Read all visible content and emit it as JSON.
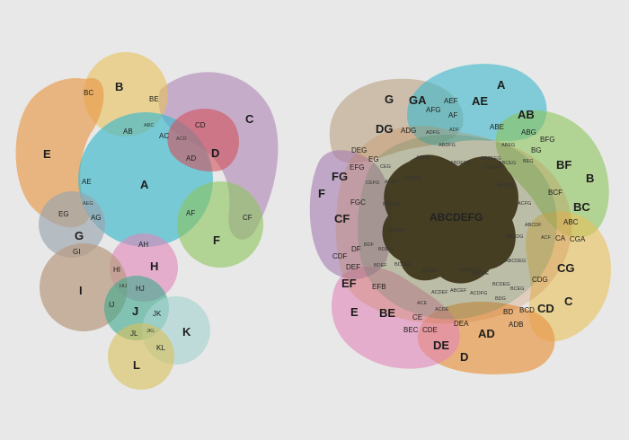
{
  "colors": {
    "A": "#3bb8cc",
    "B": "#e8c25a",
    "C": "#a77bb0",
    "D": "#d1525c",
    "E": "#e89a4a",
    "F": "#8cc45b",
    "G": "#9aa5ae",
    "H": "#e186b8",
    "I": "#b89a80",
    "J": "#3ea88e",
    "K": "#a8d4d2",
    "L": "#d9bf5a",
    "center": "#3b3318"
  },
  "left_diagram": {
    "sets": [
      "A",
      "B",
      "C",
      "D",
      "E",
      "F",
      "G",
      "H",
      "I",
      "J",
      "K",
      "L"
    ],
    "labels": [
      "A",
      "B",
      "C",
      "D",
      "E",
      "F",
      "G",
      "H",
      "I",
      "J",
      "K",
      "L",
      "AB",
      "AC",
      "ACD",
      "AD",
      "AE",
      "AEG",
      "AF",
      "AG",
      "AH",
      "BC",
      "BE",
      "CD",
      "CF",
      "EG",
      "GI",
      "HI",
      "HIJ",
      "HJ",
      "IJ",
      "JK",
      "JL",
      "JKL",
      "KL",
      "ABC"
    ]
  },
  "right_diagram": {
    "sets": [
      "A",
      "B",
      "C",
      "D",
      "E",
      "F",
      "G"
    ],
    "center_label": "ABCDEFG",
    "outer_labels": [
      "A",
      "B",
      "C",
      "D",
      "E",
      "F",
      "G",
      "AB",
      "AE",
      "BF",
      "BC",
      "CG",
      "CD",
      "DE",
      "AD",
      "BE",
      "EF",
      "CF",
      "FG",
      "DG",
      "GA"
    ],
    "mid_labels": [
      "AEF",
      "AF",
      "AFG",
      "ADG",
      "ABE",
      "ABG",
      "BG",
      "BFG",
      "BCF",
      "ABC",
      "CA",
      "CGA",
      "CDG",
      "BCD",
      "BD",
      "ADB",
      "DEA",
      "CDE",
      "CE",
      "BEC",
      "EFB",
      "DEF",
      "CDF",
      "DF",
      "FGC",
      "EFG",
      "DEG",
      "EG",
      "CEG"
    ],
    "tiny_labels": [
      "ADF",
      "ADFG",
      "ABDFG",
      "ABDEFG",
      "ABEG",
      "ACEG",
      "BEG",
      "ABCEG",
      "ABCFG",
      "ACFG",
      "ABCDF",
      "ACF",
      "ABCDG",
      "ABCDEG",
      "BCDEG",
      "BCEG",
      "BDG",
      "ACDEF",
      "ACE",
      "ACDE",
      "ABCDE",
      "ABCEF",
      "ACDEF",
      "BCDEF",
      "BDEF",
      "BDF",
      "BDEFG",
      "BCDFG",
      "CEFG",
      "ACEFG",
      "AEFG",
      "BCEFG",
      "CDEFG",
      "ABCEFG",
      "ABCDFG",
      "ACDFG"
    ]
  }
}
